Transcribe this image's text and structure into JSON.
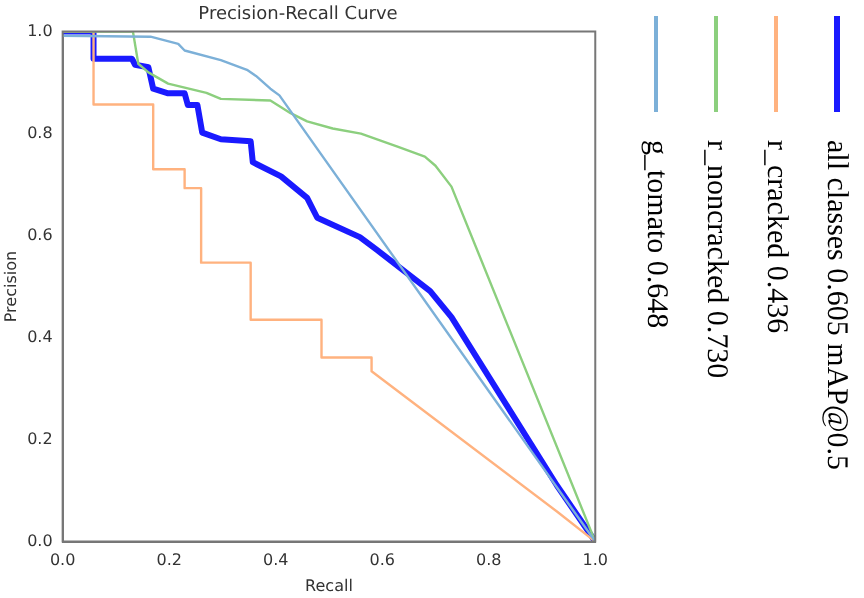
{
  "chart_data": {
    "type": "line",
    "title": "Precision-Recall Curve",
    "xlabel": "Recall",
    "ylabel": "Precision",
    "xlim": [
      0,
      1
    ],
    "ylim": [
      0,
      1
    ],
    "xticks": [
      {
        "value": 0,
        "label": "0.0"
      },
      0.2,
      0.4,
      0.6,
      0.8,
      {
        "value": 1,
        "label": "1.0"
      }
    ],
    "yticks": [
      {
        "value": 0,
        "label": "0.0"
      },
      0.2,
      0.4,
      0.6,
      0.8,
      {
        "value": 1,
        "label": "1.0"
      }
    ],
    "grid": false,
    "legend": "right",
    "marker": "none",
    "line_style": "solid",
    "series": [
      {
        "name": "all classes 0.605 mAP@0.5",
        "color": "#1a1aff",
        "x": [
          0,
          0.058,
          0.058,
          0.13,
          0.136,
          0.161,
          0.17,
          0.198,
          0.229,
          0.235,
          0.253,
          0.262,
          0.297,
          0.353,
          0.357,
          0.41,
          0.459,
          0.478,
          0.558,
          0.59,
          0.69,
          0.73,
          0.928,
          1
        ],
        "values": [
          1,
          1,
          0.947,
          0.947,
          0.935,
          0.93,
          0.888,
          0.879,
          0.879,
          0.856,
          0.856,
          0.802,
          0.789,
          0.785,
          0.744,
          0.716,
          0.674,
          0.635,
          0.597,
          0.572,
          0.491,
          0.44,
          0.11,
          0
        ]
      },
      {
        "name": "r_cracked 0.436",
        "color": "#ffb27f",
        "x": [
          0,
          0.058,
          0.058,
          0.17,
          0.17,
          0.229,
          0.229,
          0.26,
          0.26,
          0.353,
          0.353,
          0.486,
          0.486,
          0.58,
          0.58,
          0.928,
          1
        ],
        "values": [
          1,
          1,
          0.857,
          0.857,
          0.73,
          0.73,
          0.693,
          0.693,
          0.547,
          0.547,
          0.435,
          0.435,
          0.361,
          0.361,
          0.334,
          0.059,
          0
        ]
      },
      {
        "name": "r_noncracked 0.730",
        "color": "#8ccf7e",
        "x": [
          0,
          0.132,
          0.142,
          0.161,
          0.198,
          0.27,
          0.297,
          0.39,
          0.428,
          0.459,
          0.507,
          0.56,
          0.63,
          0.68,
          0.7,
          0.73,
          1
        ],
        "values": [
          1,
          1,
          0.937,
          0.92,
          0.898,
          0.88,
          0.868,
          0.865,
          0.84,
          0.824,
          0.81,
          0.8,
          0.774,
          0.755,
          0.737,
          0.696,
          0
        ]
      },
      {
        "name": "g_tomato 0.648",
        "color": "#7cb0d8",
        "x": [
          0,
          0.165,
          0.217,
          0.229,
          0.297,
          0.346,
          0.363,
          0.39,
          0.407,
          1
        ],
        "values": [
          0.992,
          0.99,
          0.976,
          0.963,
          0.944,
          0.925,
          0.913,
          0.888,
          0.875,
          0
        ]
      }
    ]
  }
}
